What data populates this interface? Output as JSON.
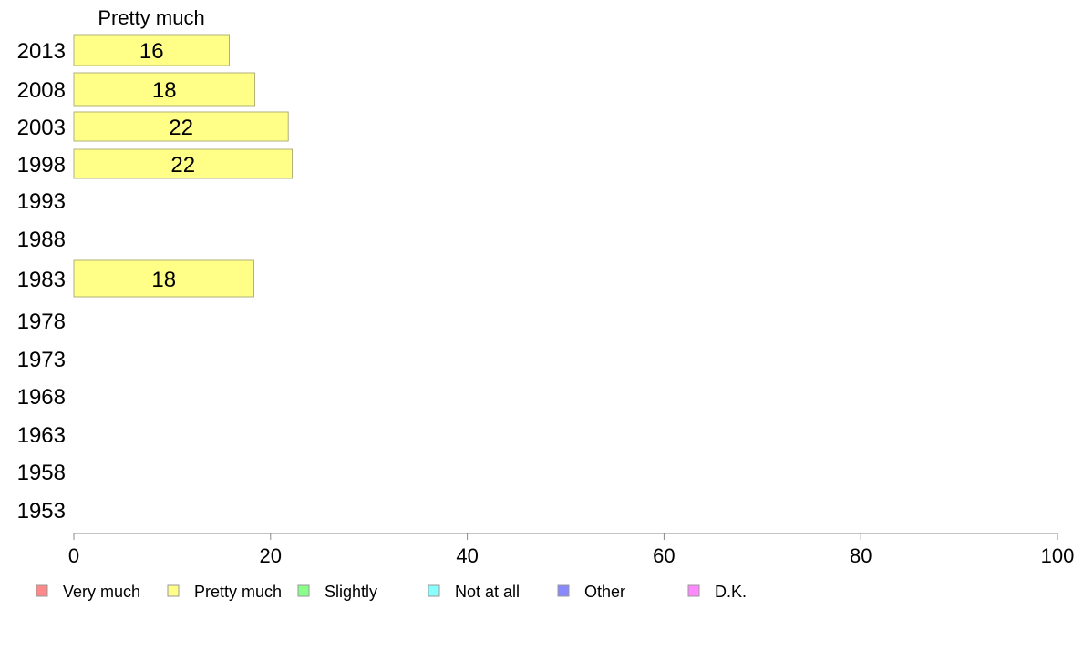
{
  "chart_data": {
    "type": "bar",
    "orientation": "horizontal",
    "categories": [
      "2013",
      "2008",
      "2003",
      "1998",
      "1993",
      "1988",
      "1983",
      "1978",
      "1973",
      "1968",
      "1963",
      "1958",
      "1953"
    ],
    "series": [
      {
        "name": "Pretty much",
        "color": "#ffff88",
        "values": [
          15.8,
          18.4,
          21.8,
          22.2,
          null,
          null,
          18.3,
          null,
          null,
          null,
          null,
          null,
          null
        ],
        "data_labels": [
          "16",
          "18",
          "22",
          "22",
          "",
          "",
          "18",
          "",
          "",
          "",
          "",
          "",
          ""
        ]
      }
    ],
    "series_label": "Pretty much",
    "xlim": [
      0,
      100
    ],
    "xticks": [
      "0",
      "20",
      "40",
      "60",
      "80",
      "100"
    ],
    "xtick_values": [
      0,
      20,
      40,
      60,
      80,
      100
    ],
    "grid": false,
    "legend_position": "bottom",
    "legend": [
      {
        "label": "Very much",
        "color": "#ff8888"
      },
      {
        "label": "Pretty much",
        "color": "#ffff88"
      },
      {
        "label": "Slightly",
        "color": "#88ff88"
      },
      {
        "label": "Not at all",
        "color": "#88ffff"
      },
      {
        "label": "Other",
        "color": "#8888ff"
      },
      {
        "label": "D.K.",
        "color": "#ff88ff"
      }
    ]
  }
}
